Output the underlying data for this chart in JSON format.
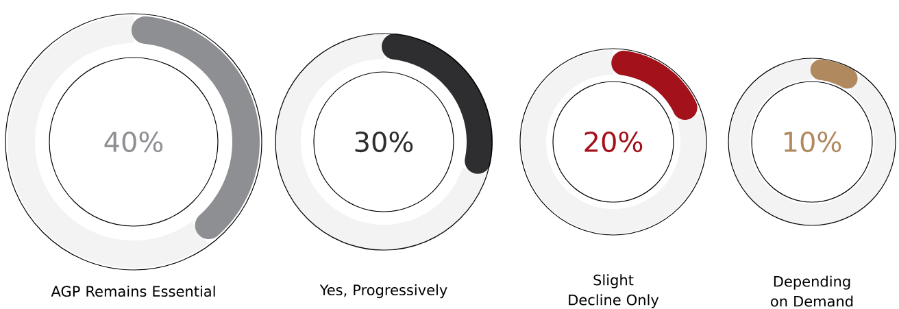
{
  "chart_data": [
    {
      "type": "donut",
      "title": "AGP Remains Essential",
      "categories": [
        null,
        null
      ],
      "values": [
        40,
        60
      ],
      "colors": [
        "#8e8f93",
        "#f3f3f3"
      ],
      "annotations": [
        "40%"
      ]
    },
    {
      "type": "donut",
      "title": "Yes, Progressively",
      "categories": [
        null,
        null
      ],
      "values": [
        30,
        70
      ],
      "colors": [
        "#2e2e30",
        "#f3f3f3"
      ],
      "annotations": [
        "30%"
      ]
    },
    {
      "type": "donut",
      "title": "Slight Decline Only",
      "categories": [
        null,
        null
      ],
      "values": [
        20,
        80
      ],
      "colors": [
        "#a3121a",
        "#f3f3f3"
      ],
      "annotations": [
        "20%"
      ]
    },
    {
      "type": "donut",
      "title": "Depending on Demand",
      "categories": [
        null,
        null
      ],
      "values": [
        10,
        90
      ],
      "colors": [
        "#b08a5e",
        "#f3f3f3"
      ],
      "annotations": [
        "10%"
      ]
    }
  ]
}
